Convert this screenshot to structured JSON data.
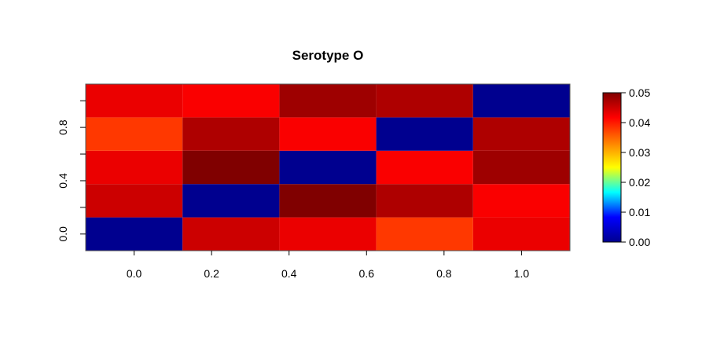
{
  "chart_data": {
    "type": "heatmap",
    "title": "Serotype O",
    "xlabel": "",
    "ylabel": "",
    "x_centers": [
      0.0,
      0.25,
      0.5,
      0.75,
      1.0
    ],
    "y_centers": [
      0.0,
      0.25,
      0.5,
      0.75,
      1.0
    ],
    "xlim": [
      -0.125,
      1.125
    ],
    "ylim": [
      -0.125,
      1.125
    ],
    "x_ticks": [
      "0.0",
      "0.2",
      "0.4",
      "0.6",
      "0.8",
      "1.0"
    ],
    "x_tick_values": [
      0.0,
      0.2,
      0.4,
      0.6,
      0.8,
      1.0
    ],
    "y_ticks": [
      "0.0",
      "0.4",
      "0.8"
    ],
    "y_tick_values": [
      0.0,
      0.4,
      0.8
    ],
    "y_minor_tick_values": [
      0.2,
      0.6,
      1.0
    ],
    "values": [
      [
        0.0,
        0.045,
        0.043,
        0.038,
        0.043
      ],
      [
        0.045,
        0.0,
        0.05,
        0.047,
        0.042
      ],
      [
        0.043,
        0.05,
        0.0,
        0.042,
        0.048
      ],
      [
        0.038,
        0.047,
        0.042,
        0.0,
        0.047
      ],
      [
        0.043,
        0.042,
        0.048,
        0.047,
        0.0
      ]
    ],
    "colorbar": {
      "range": [
        0.0,
        0.05
      ],
      "ticks": [
        "0.00",
        "0.01",
        "0.02",
        "0.03",
        "0.04",
        "0.05"
      ],
      "tick_values": [
        0.0,
        0.01,
        0.02,
        0.03,
        0.04,
        0.05
      ],
      "colormap": [
        "#00008f",
        "#0000ff",
        "#00ffff",
        "#ffff00",
        "#ff7f00",
        "#ff0000",
        "#800000"
      ]
    },
    "grid": false,
    "legend": "colorbar-right"
  }
}
